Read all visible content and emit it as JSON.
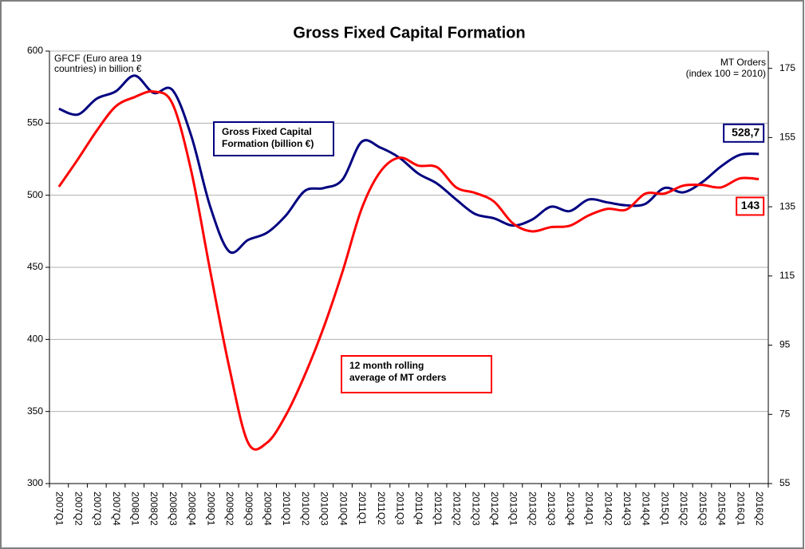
{
  "chart_data": {
    "type": "line",
    "title": "Gross Fixed Capital Formation",
    "y_label": [
      "GFCF (Euro area 19",
      "countries) in billion €"
    ],
    "y2_label": [
      "MT Orders",
      "(index 100 = 2010)"
    ],
    "categories": [
      "2007Q1",
      "2007Q2",
      "2007Q3",
      "2007Q4",
      "2008Q1",
      "2008Q2",
      "2008Q3",
      "2008Q4",
      "2009Q1",
      "2009Q2",
      "2009Q3",
      "2009Q4",
      "2010Q1",
      "2010Q2",
      "2010Q3",
      "2010Q4",
      "2011Q1",
      "2011Q2",
      "2011Q3",
      "2011Q4",
      "2012Q1",
      "2012Q2",
      "2012Q3",
      "2012Q4",
      "2013Q1",
      "2013Q2",
      "2013Q3",
      "2013Q4",
      "2014Q1",
      "2014Q2",
      "2014Q3",
      "2014Q4",
      "2015Q1",
      "2015Q2",
      "2015Q3",
      "2015Q4",
      "2016Q1",
      "2016Q2"
    ],
    "series": [
      {
        "name": [
          "Gross Fixed Capital",
          "Formation (billion €)"
        ],
        "color": "#000080",
        "axis": "y",
        "values": [
          560,
          556,
          567,
          572,
          583,
          571,
          573,
          541,
          492,
          461,
          469,
          474,
          486,
          503,
          505,
          511,
          537,
          533,
          526,
          515,
          508,
          497,
          487,
          484,
          479,
          483,
          492,
          489,
          497,
          495,
          493,
          494,
          505,
          502,
          509,
          520,
          528,
          528.7
        ],
        "value_labels": [
          null,
          null,
          null,
          null,
          null,
          null,
          null,
          null,
          null,
          null,
          null,
          null,
          null,
          null,
          null,
          null,
          null,
          null,
          null,
          null,
          null,
          null,
          null,
          null,
          null,
          null,
          null,
          null,
          null,
          null,
          null,
          null,
          null,
          null,
          null,
          null,
          null,
          "528,7"
        ]
      },
      {
        "name": [
          "12 month rolling",
          "average of MT orders"
        ],
        "color": "#ff0000",
        "axis": "y2",
        "values": [
          140.8,
          148.7,
          157,
          164,
          166.7,
          168.3,
          164.8,
          145.2,
          116.4,
          88.7,
          66.8,
          66.8,
          74.8,
          86.4,
          100.2,
          116.4,
          134.4,
          145.2,
          149.2,
          146.9,
          146.4,
          140.6,
          139,
          136.5,
          130.2,
          127.9,
          129.1,
          129.5,
          132.5,
          134.4,
          134.2,
          138.8,
          138.8,
          141.1,
          141.3,
          140.6,
          143.2,
          143
        ],
        "value_labels": [
          null,
          null,
          null,
          null,
          null,
          null,
          null,
          null,
          null,
          null,
          null,
          null,
          null,
          null,
          null,
          null,
          null,
          null,
          null,
          null,
          null,
          null,
          null,
          null,
          null,
          null,
          null,
          null,
          null,
          null,
          null,
          null,
          null,
          null,
          null,
          null,
          null,
          "143"
        ]
      }
    ],
    "ylim": [
      300,
      600
    ],
    "yticks": [
      300,
      350,
      400,
      450,
      500,
      550,
      600
    ],
    "y2lim": [
      55,
      180
    ],
    "y2ticks": [
      55,
      75,
      95,
      115,
      135,
      155,
      175
    ],
    "grid": true
  }
}
